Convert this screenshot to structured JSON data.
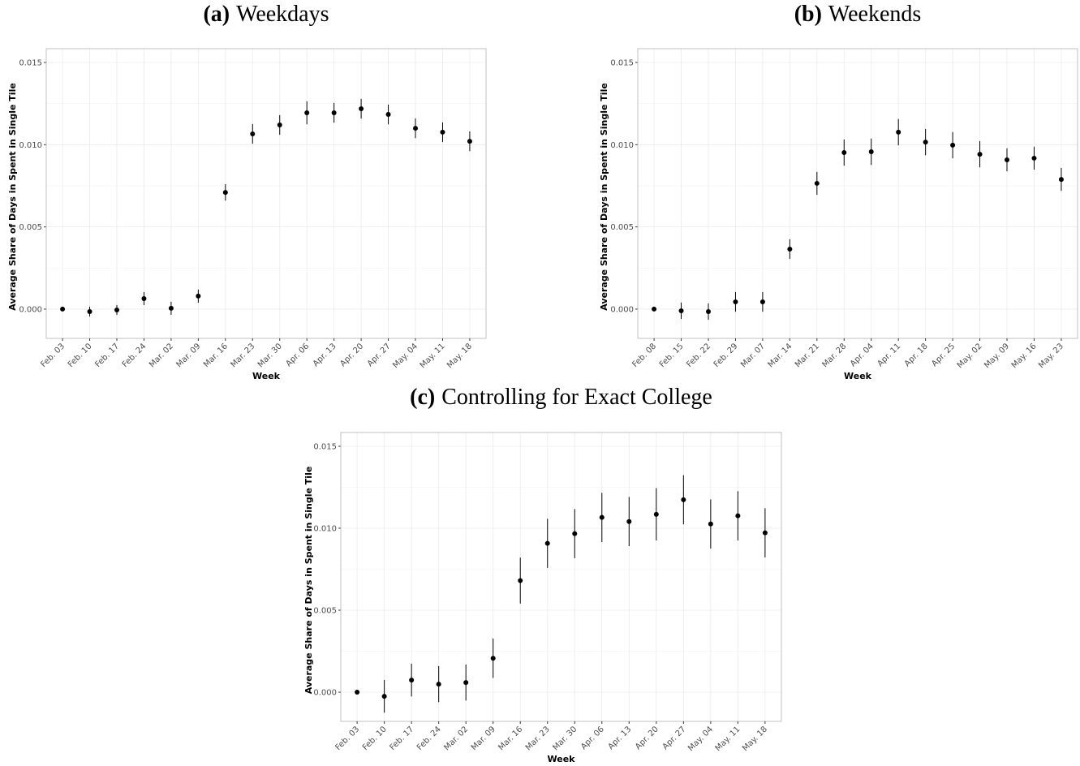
{
  "chart_data": [
    {
      "type": "errorbar",
      "title_label": "(a)",
      "title": "Weekdays",
      "x_label": "Week",
      "y_label": "Average Share of Days in Spent in Single Tile",
      "color": "#000000",
      "grid": true,
      "categories": [
        "Feb. 03",
        "Feb. 10",
        "Feb. 17",
        "Feb. 24",
        "Mar. 02",
        "Mar. 09",
        "Mar. 16",
        "Mar. 23",
        "Mar. 30",
        "Apr. 06",
        "Apr. 13",
        "Apr. 20",
        "Apr. 27",
        "May. 04",
        "May. 11",
        "May. 18"
      ],
      "values": [
        0,
        -0.00015,
        -5e-05,
        0.00064,
        5e-05,
        0.00079,
        0.0071,
        0.01066,
        0.0112,
        0.01194,
        0.01194,
        0.01219,
        0.01184,
        0.011,
        0.01076,
        0.01021
      ],
      "errors": [
        0,
        0.0003,
        0.0003,
        0.0004,
        0.0004,
        0.0004,
        0.0005,
        0.0006,
        0.0006,
        0.0007,
        0.0006,
        0.0006,
        0.0006,
        0.0006,
        0.0006,
        0.0006
      ],
      "ylim": [
        -0.00178,
        0.01584
      ],
      "yticks": [
        {
          "value": 0,
          "label": "0.000"
        },
        {
          "value": 0.005,
          "label": "0.005"
        },
        {
          "value": 0.01,
          "label": "0.010"
        },
        {
          "value": 0.015,
          "label": "0.015"
        }
      ]
    },
    {
      "type": "errorbar",
      "title_label": "(b)",
      "title": "Weekends",
      "x_label": "Week",
      "y_label": "Average Share of Days in Spent in Single Tile",
      "color": "#000000",
      "grid": true,
      "categories": [
        "Feb. 08",
        "Feb. 15",
        "Feb. 22",
        "Feb. 29",
        "Mar. 07",
        "Mar. 14",
        "Mar. 21",
        "Mar. 28",
        "Apr. 04",
        "Apr. 11",
        "Apr. 18",
        "Apr. 25",
        "May. 02",
        "May. 09",
        "May. 16",
        "May. 23"
      ],
      "values": [
        0,
        -0.0001,
        -0.00015,
        0.00044,
        0.00044,
        0.00365,
        0.00765,
        0.00952,
        0.00957,
        0.01076,
        0.01016,
        0.00997,
        0.00942,
        0.00908,
        0.00918,
        0.00789
      ],
      "errors": [
        0,
        0.0005,
        0.0005,
        0.0006,
        0.0006,
        0.0006,
        0.0007,
        0.0008,
        0.0008,
        0.0008,
        0.0008,
        0.0008,
        0.0008,
        0.0007,
        0.0007,
        0.0007
      ],
      "ylim": [
        -0.00178,
        0.01584
      ],
      "yticks": [
        {
          "value": 0,
          "label": "0.000"
        },
        {
          "value": 0.005,
          "label": "0.005"
        },
        {
          "value": 0.01,
          "label": "0.010"
        },
        {
          "value": 0.015,
          "label": "0.015"
        }
      ]
    },
    {
      "type": "errorbar",
      "title_label": "(c)",
      "title": "Controlling for Exact College",
      "x_label": "Week",
      "y_label": "Average Share of Days in Spent in Single Tile",
      "color": "#000000",
      "grid": true,
      "categories": [
        "Feb. 03",
        "Feb. 10",
        "Feb. 17",
        "Feb. 24",
        "Mar. 02",
        "Mar. 09",
        "Mar. 16",
        "Mar. 23",
        "Mar. 30",
        "Apr. 06",
        "Apr. 13",
        "Apr. 20",
        "Apr. 27",
        "May. 04",
        "May. 11",
        "May. 18"
      ],
      "values": [
        0,
        -0.00025,
        0.00074,
        0.00049,
        0.00059,
        0.00207,
        0.00681,
        0.00908,
        0.00967,
        0.01066,
        0.01041,
        0.01085,
        0.01174,
        0.01026,
        0.01076,
        0.00972
      ],
      "errors": [
        0,
        0.001,
        0.001,
        0.0011,
        0.0011,
        0.0012,
        0.0014,
        0.0015,
        0.0015,
        0.0015,
        0.0015,
        0.0016,
        0.0015,
        0.0015,
        0.0015,
        0.0015
      ],
      "ylim": [
        -0.00178,
        0.01584
      ],
      "yticks": [
        {
          "value": 0,
          "label": "0.000"
        },
        {
          "value": 0.005,
          "label": "0.005"
        },
        {
          "value": 0.01,
          "label": "0.010"
        },
        {
          "value": 0.015,
          "label": "0.015"
        }
      ]
    }
  ]
}
